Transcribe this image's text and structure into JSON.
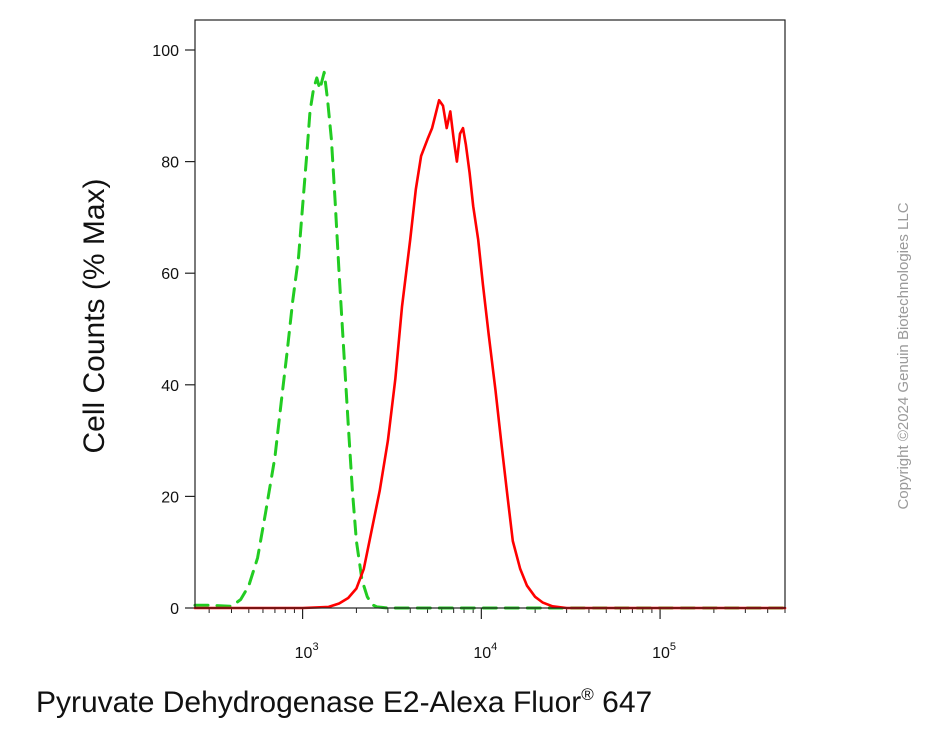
{
  "chart_data": {
    "type": "line",
    "title": "",
    "xlabel": "Pyruvate Dehydrogenase E2-Alexa Fluor",
    "xlabel_superscript": "®",
    "xlabel_suffix": "647",
    "ylabel": "Cell Counts (% Max)",
    "x_scale": "log",
    "xlim": [
      250,
      500000
    ],
    "ylim": [
      0,
      100
    ],
    "grid": false,
    "legend": "none",
    "y_ticks": [
      {
        "value": 0,
        "label": "0"
      },
      {
        "value": 20,
        "label": "20"
      },
      {
        "value": 40,
        "label": "40"
      },
      {
        "value": 60,
        "label": "60"
      },
      {
        "value": 80,
        "label": "80"
      },
      {
        "value": 100,
        "label": "100"
      }
    ],
    "x_major_ticks": [
      {
        "value": 1000,
        "label_base": "10",
        "label_exp": "3"
      },
      {
        "value": 10000,
        "label_base": "10",
        "label_exp": "4"
      },
      {
        "value": 100000,
        "label_base": "10",
        "label_exp": "5"
      }
    ],
    "series": [
      {
        "color": "#22cc22",
        "dash": true,
        "x": [
          250,
          300,
          400,
          450,
          500,
          560,
          620,
          700,
          760,
          820,
          880,
          950,
          1000,
          1060,
          1100,
          1150,
          1200,
          1250,
          1320,
          1380,
          1450,
          1520,
          1600,
          1700,
          1800,
          1900,
          2000,
          2150,
          2300,
          2450,
          2600,
          3000,
          5000,
          10000,
          50000,
          500000
        ],
        "y": [
          0.5,
          0.5,
          0.3,
          1.5,
          4,
          9,
          17,
          27,
          37,
          46,
          55,
          63,
          72,
          82,
          89,
          93,
          95,
          93,
          96,
          91,
          84,
          73,
          60,
          46,
          33,
          21,
          12,
          5,
          2,
          0.6,
          0.2,
          0,
          0,
          0,
          0,
          0
        ]
      },
      {
        "color": "#ff0000",
        "dash": false,
        "x": [
          250,
          1000,
          1400,
          1600,
          1800,
          2000,
          2200,
          2400,
          2700,
          3000,
          3300,
          3600,
          4000,
          4300,
          4600,
          5000,
          5300,
          5500,
          5800,
          6100,
          6400,
          6700,
          7000,
          7300,
          7600,
          7900,
          8200,
          8600,
          9000,
          9600,
          10200,
          11000,
          12000,
          13000,
          14000,
          15000,
          16500,
          18000,
          20000,
          22000,
          25000,
          30000,
          50000,
          500000
        ],
        "y": [
          0,
          0,
          0.2,
          0.8,
          1.8,
          3.5,
          7,
          13,
          21,
          30,
          41,
          54,
          66,
          75,
          81,
          84,
          86,
          88,
          91,
          90,
          86,
          89,
          84,
          80,
          85,
          86,
          83,
          78,
          72,
          66,
          58,
          49,
          39,
          29,
          20,
          12,
          7,
          4,
          2,
          1,
          0.3,
          0,
          0,
          0
        ]
      }
    ]
  },
  "watermark": {
    "text": "Copyright ©2024 Genuin Biotechnologies LLC"
  }
}
